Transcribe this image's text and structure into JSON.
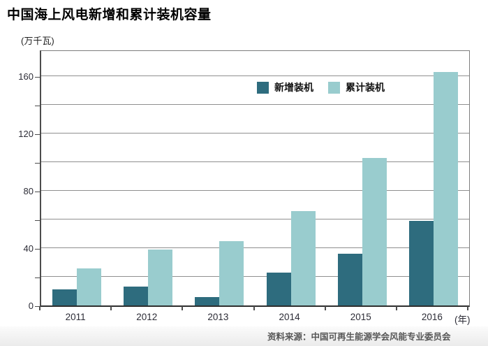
{
  "title": "中国海上风电新增和累计装机容量",
  "y_axis_unit": "(万千瓦)",
  "x_axis_unit": "(年)",
  "source_note": "资料来源：中国可再生能源学会风能专业委员会",
  "colors": {
    "new_installed": "#2E6C7E",
    "cumulative_installed": "#99CCCE",
    "gridline": "#8F8F8F",
    "axis": "#2E2E2E"
  },
  "chart_data": {
    "type": "bar",
    "title": "中国海上风电新增和累计装机容量",
    "categories": [
      "2011",
      "2012",
      "2013",
      "2014",
      "2015",
      "2016"
    ],
    "series": [
      {
        "key": "new-installed",
        "name": "新增装机",
        "color": "#2E6C7E",
        "values": [
          11,
          13,
          6,
          23,
          36,
          59
        ]
      },
      {
        "key": "cumulative-installed",
        "name": "累计装机",
        "color": "#99CCCE",
        "values": [
          26,
          39,
          45,
          66,
          103,
          163
        ]
      }
    ],
    "ylabel": "(万千瓦)",
    "xlabel": "(年)",
    "ylim": [
      0,
      178
    ],
    "ytick_step": 20,
    "ytick_label_step": 40,
    "ytick_labels": [
      "0",
      "40",
      "80",
      "120",
      "160"
    ],
    "grid": true,
    "legend_position": "inside-top-center"
  }
}
